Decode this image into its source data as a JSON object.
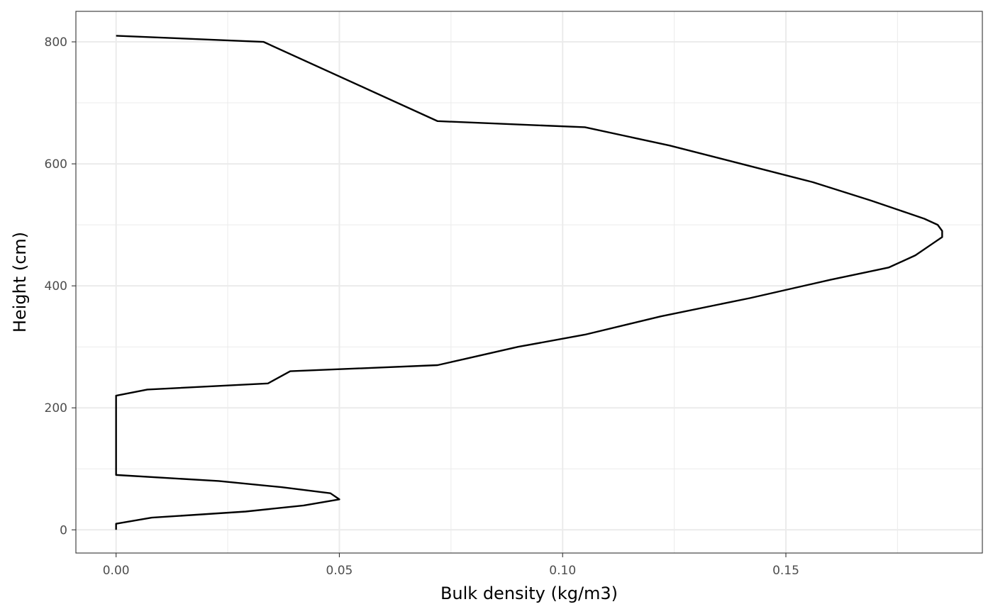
{
  "chart_data": {
    "type": "line",
    "title": "",
    "xlabel": "Bulk density (kg/m3)",
    "ylabel": "Height (cm)",
    "xlim": [
      -0.009,
      0.194
    ],
    "ylim": [
      -38,
      850
    ],
    "x_ticks": [
      0.0,
      0.05,
      0.1,
      0.15
    ],
    "x_tick_labels": [
      "0.00",
      "0.05",
      "0.10",
      "0.15"
    ],
    "x_minor_ticks": [
      0.025,
      0.075,
      0.125,
      0.175
    ],
    "y_ticks": [
      0,
      200,
      400,
      600,
      800
    ],
    "y_tick_labels": [
      "0",
      "200",
      "400",
      "600",
      "800"
    ],
    "y_minor_ticks": [
      100,
      300,
      500,
      700
    ],
    "grid": true,
    "legend": "none",
    "line_color": "#000000",
    "series": [
      {
        "x": [
          0.0,
          0.0,
          0.008,
          0.029,
          0.042,
          0.05,
          0.048,
          0.037,
          0.023,
          0.0,
          0.0,
          0.0,
          0.007,
          0.034,
          0.039,
          0.072,
          0.078,
          0.09,
          0.105,
          0.122,
          0.142,
          0.16,
          0.173,
          0.179,
          0.183,
          0.185,
          0.185,
          0.184,
          0.181,
          0.177,
          0.169,
          0.156,
          0.14,
          0.124,
          0.105,
          0.072,
          0.033,
          0.0
        ],
        "y": [
          0,
          10,
          20,
          30,
          40,
          50,
          60,
          70,
          80,
          90,
          150,
          220,
          230,
          240,
          260,
          270,
          280,
          300,
          320,
          350,
          380,
          410,
          430,
          450,
          470,
          480,
          490,
          500,
          510,
          520,
          540,
          570,
          600,
          630,
          660,
          670,
          800,
          810
        ]
      }
    ]
  }
}
